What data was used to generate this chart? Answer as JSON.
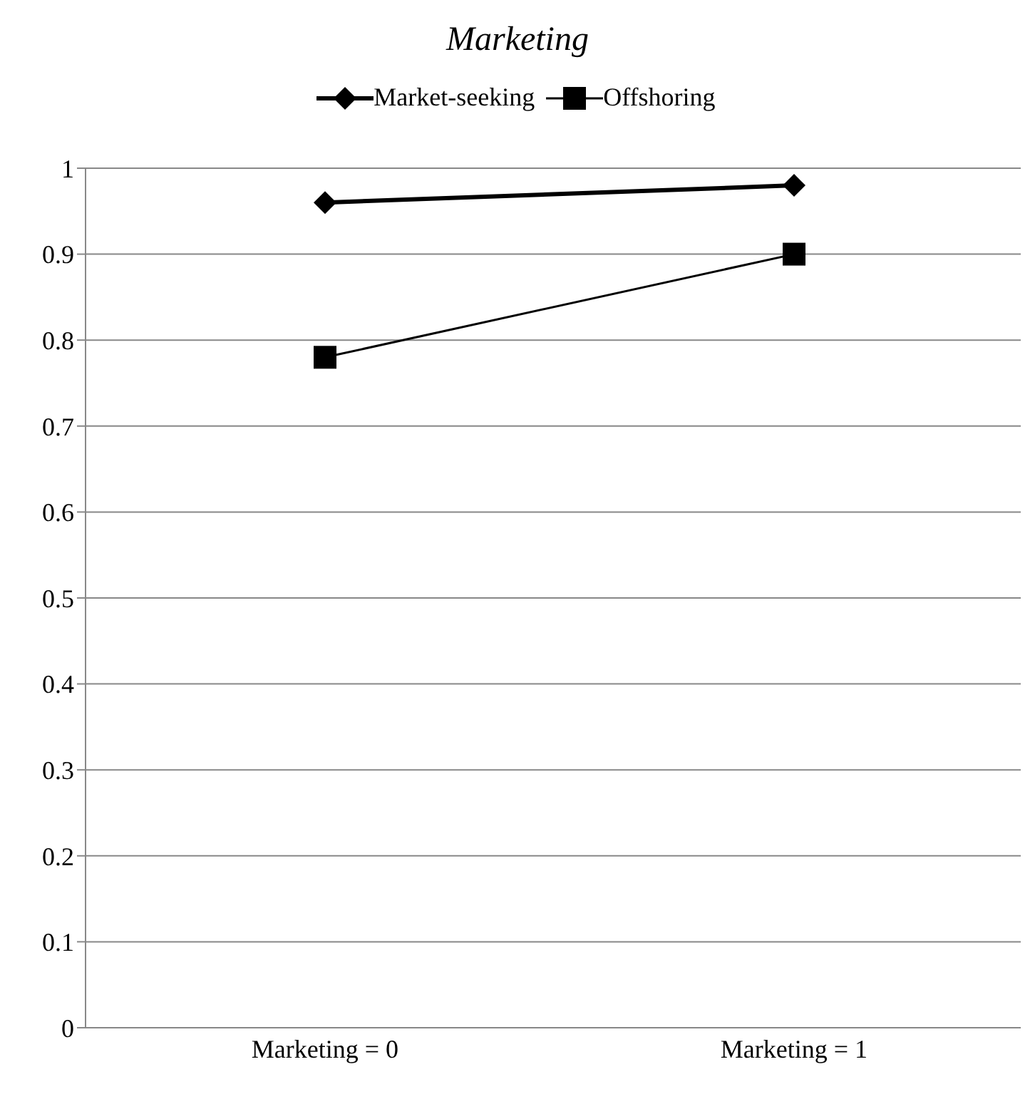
{
  "chart_data": {
    "type": "line",
    "title": "Marketing",
    "categories": [
      "Marketing = 0",
      "Marketing = 1"
    ],
    "series": [
      {
        "name": "Market-seeking",
        "color": "#000000",
        "values": [
          0.96,
          0.98
        ],
        "marker": "diamond"
      },
      {
        "name": "Offshoring",
        "color": "#000000",
        "values": [
          0.78,
          0.9
        ],
        "marker": "square"
      }
    ],
    "ylim": [
      0,
      1
    ],
    "yticks": [
      0,
      0.1,
      0.2,
      0.3,
      0.4,
      0.5,
      0.6,
      0.7,
      0.8,
      0.9,
      1
    ],
    "grid": "y",
    "legend": "top"
  }
}
